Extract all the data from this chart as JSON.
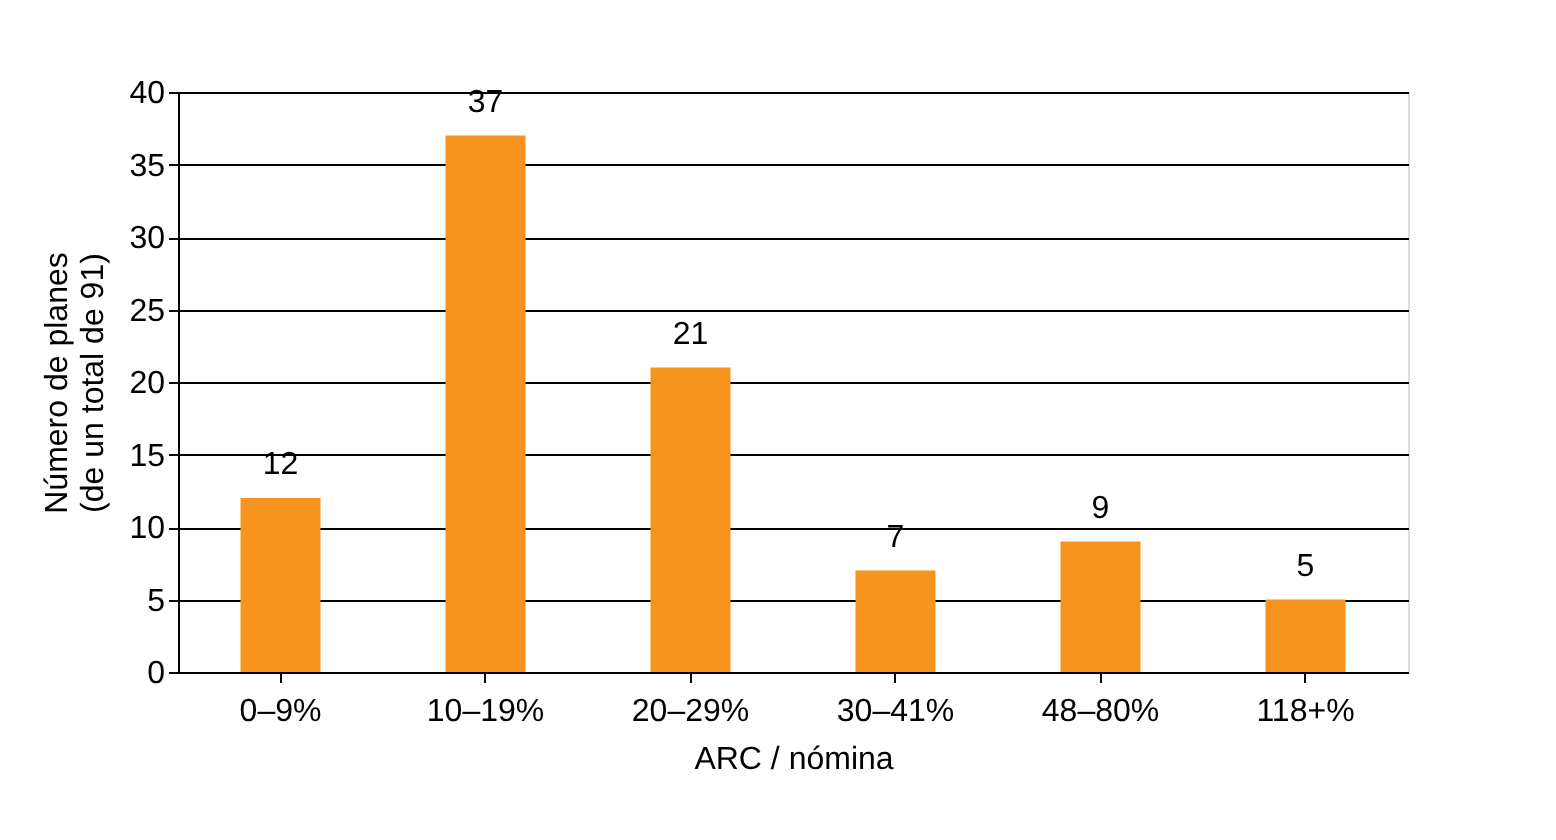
{
  "chart_data": {
    "type": "bar",
    "categories": [
      "0–9%",
      "10–19%",
      "20–29%",
      "30–41%",
      "48–80%",
      "118+%"
    ],
    "values": [
      12,
      37,
      21,
      7,
      9,
      5
    ],
    "color": "#f7941d",
    "xlabel": "ARC / nómina",
    "ylabel": "Número de planes\n(de un total de 91)",
    "ylim": [
      0,
      40
    ],
    "yticks": [
      0,
      5,
      10,
      15,
      20,
      25,
      30,
      35,
      40
    ],
    "grid": "y",
    "data_labels": true
  }
}
